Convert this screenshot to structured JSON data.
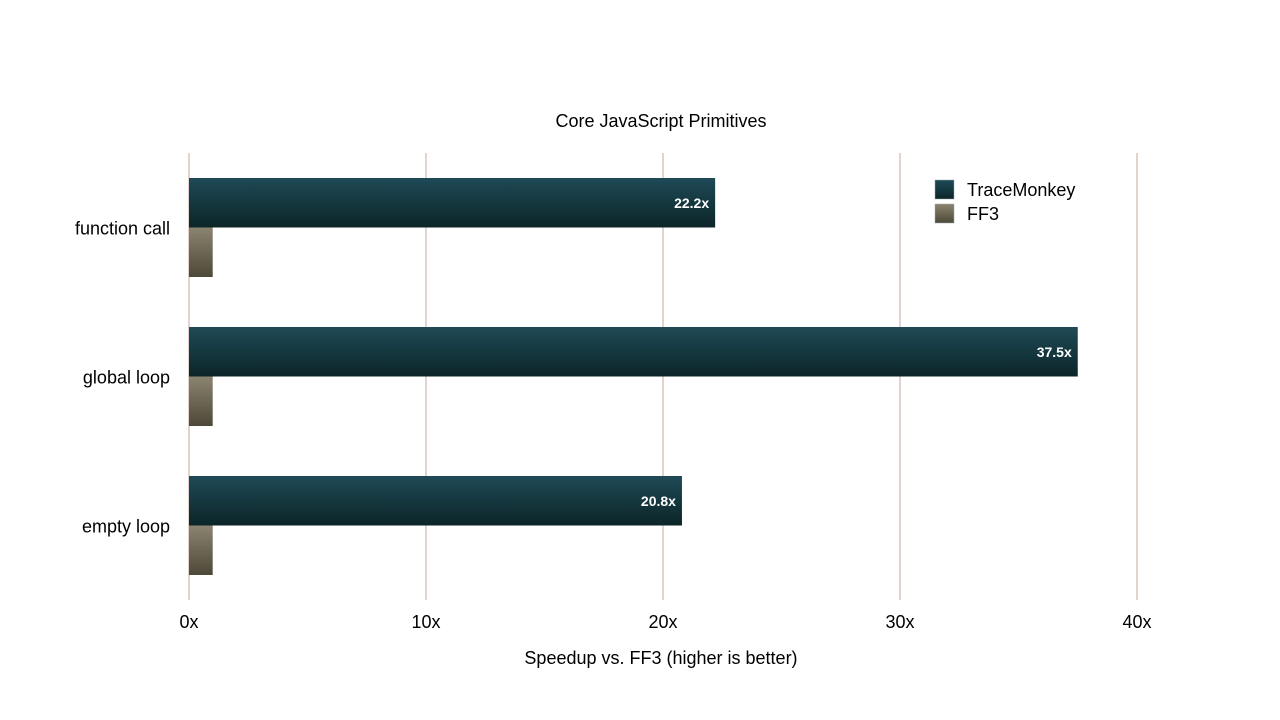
{
  "chart_data": {
    "type": "bar",
    "orientation": "horizontal",
    "title": "Core JavaScript Primitives",
    "xlabel": "Speedup vs. FF3 (higher is better)",
    "ylabel": "",
    "xlim": [
      0,
      40
    ],
    "xticks": [
      0,
      10,
      20,
      30,
      40
    ],
    "xtick_labels": [
      "0x",
      "10x",
      "20x",
      "30x",
      "40x"
    ],
    "grid": true,
    "legend_position": "top-right",
    "categories": [
      "function call",
      "global loop",
      "empty loop"
    ],
    "series": [
      {
        "name": "TraceMonkey",
        "values": [
          22.2,
          37.5,
          20.8
        ],
        "labels": [
          "22.2x",
          "37.5x",
          "20.8x"
        ],
        "color_top": "#1e4a56",
        "color_bottom": "#0c2528"
      },
      {
        "name": "FF3",
        "values": [
          1,
          1,
          1
        ],
        "color_top": "#8a8470",
        "color_bottom": "#4e4838"
      }
    ],
    "grid_color": "#c4a898"
  }
}
